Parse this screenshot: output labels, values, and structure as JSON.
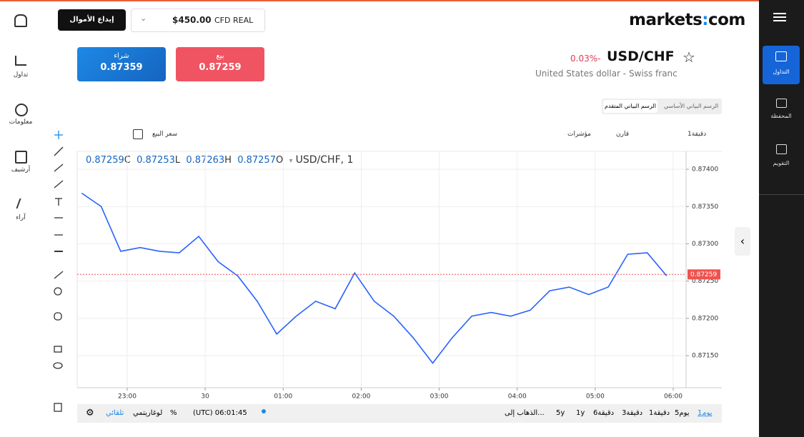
{
  "ui": {
    "header": {
      "deposit": "إيداع الأموال",
      "balance": "$450.00",
      "account": "CFD REAL",
      "logo_left": "markets",
      "logo_right": "com"
    },
    "left_nav": [
      "تداول",
      "معلومات",
      "أرشيف",
      "آراء"
    ],
    "right_nav": [
      "التداول",
      "المحفظة",
      "التقويم"
    ],
    "buy": {
      "label": "شراء",
      "price": "0.87359"
    },
    "sell": {
      "label": "بيع",
      "price": "0.87259"
    },
    "instrument": {
      "change": "0.03%-",
      "symbol": "USD/CHF",
      "name": "United States dollar - Swiss franc"
    },
    "tabs": [
      "الرسم البياني الأساسي",
      "الرسم البياني المتقدم"
    ],
    "toolbar": {
      "price_type": "سعر البيع",
      "interval": "1دقيقة",
      "compare": "قارن",
      "indicators": "مؤشرات"
    },
    "ohlc": {
      "c": "0.87259",
      "c_key": "C",
      "l": "0.87253",
      "l_key": "L",
      "h": "0.87263",
      "h_key": "H",
      "o": "0.87257",
      "o_key": "O",
      "symbol": "USD/CHF, 1"
    },
    "bottom": {
      "auto": "تلقائي",
      "log": "لوغاريتمي",
      "percent": "%",
      "time": "(UTC) 06:01:45",
      "goto": "الذهاب إلى...",
      "ranges": [
        "5y",
        "1y",
        "6دقيقة",
        "3دقيقة",
        "1دقيقة",
        "5يوم",
        "1يوم"
      ]
    }
  },
  "chart_data": {
    "type": "line",
    "color": "#2962ff",
    "x": [
      "22:25",
      "22:40",
      "22:55",
      "23:10",
      "23:25",
      "23:40",
      "23:55",
      "00:10",
      "00:25",
      "00:40",
      "00:55",
      "01:10",
      "01:25",
      "01:40",
      "01:55",
      "02:10",
      "02:25",
      "02:40",
      "02:55",
      "03:10",
      "03:25",
      "03:40",
      "03:55",
      "04:10",
      "04:25",
      "04:40",
      "04:55",
      "05:10",
      "05:25",
      "05:40",
      "05:55"
    ],
    "series": [
      {
        "name": "USD/CHF",
        "color": "#2962ff",
        "values": [
          0.87368,
          0.8735,
          0.8729,
          0.87295,
          0.8729,
          0.87288,
          0.8731,
          0.87276,
          0.87257,
          0.87223,
          0.87179,
          0.87203,
          0.87223,
          0.87213,
          0.87261,
          0.87223,
          0.87203,
          0.87174,
          0.8714,
          0.87174,
          0.87203,
          0.87208,
          0.87203,
          0.87211,
          0.87237,
          0.87242,
          0.87232,
          0.87242,
          0.87286,
          0.87288,
          0.87257
        ]
      }
    ],
    "xticks": [
      "23:00",
      {
        "value": "00:00",
        "label": "30"
      },
      "01:00",
      "02:00",
      "03:00",
      "04:00",
      "05:00",
      "06:00"
    ],
    "ylim": [
      0.87107,
      0.87424
    ],
    "yticks": [
      {
        "value": 0.8715,
        "label": "0.87150"
      },
      {
        "value": 0.872,
        "label": "0.87200"
      },
      {
        "value": 0.8725,
        "label": "0.87250"
      },
      {
        "value": 0.873,
        "label": "0.87300"
      },
      {
        "value": 0.8735,
        "label": "0.87350"
      },
      {
        "value": 0.874,
        "label": "0.87400"
      }
    ],
    "current_price": 0.87259,
    "current_color": "#ef5350",
    "grid": true
  }
}
